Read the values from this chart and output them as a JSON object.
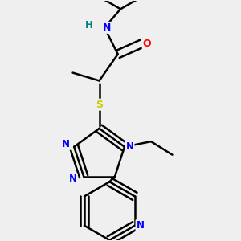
{
  "background_color": "#efefef",
  "atom_colors": {
    "C": "#000000",
    "N": "#0000ff",
    "O": "#ff0000",
    "S": "#cccc00",
    "H": "#008080"
  },
  "bond_color": "#000000",
  "bond_width": 1.8,
  "figsize": [
    3.0,
    3.0
  ],
  "dpi": 100,
  "xlim": [
    0.1,
    0.9
  ],
  "ylim": [
    0.05,
    0.95
  ]
}
